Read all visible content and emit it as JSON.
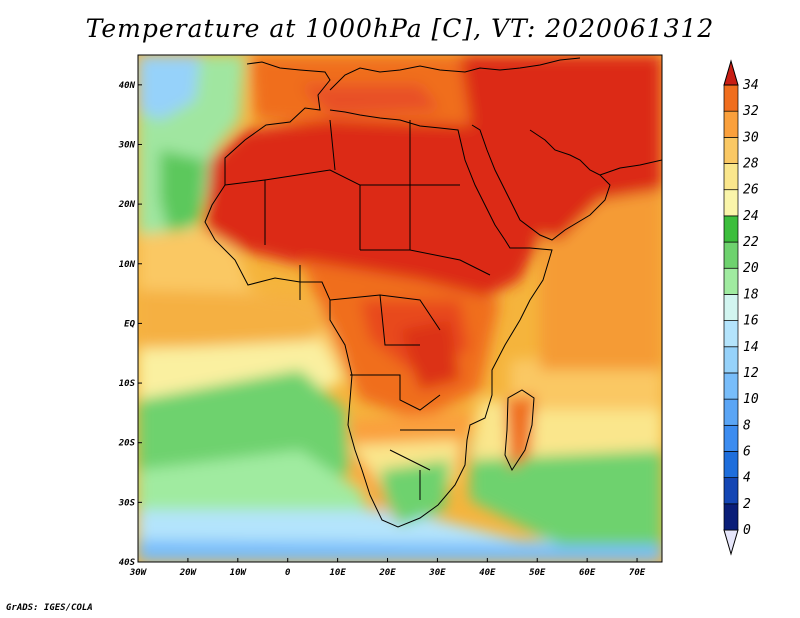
{
  "title": "Temperature at 1000hPa [C], VT: 2020061312",
  "credit": "GrADS: IGES/COLA",
  "map": {
    "lon_range": [
      -30,
      75
    ],
    "lat_range": [
      -40,
      45
    ],
    "lon_ticks": [
      "30W",
      "20W",
      "10W",
      "0",
      "10E",
      "20E",
      "30E",
      "40E",
      "50E",
      "60E",
      "70E"
    ],
    "lat_ticks": [
      "40S",
      "30S",
      "20S",
      "10S",
      "EQ",
      "10N",
      "20N",
      "30N",
      "40N"
    ]
  },
  "colorbar": {
    "levels": [
      "0",
      "2",
      "4",
      "6",
      "8",
      "10",
      "12",
      "14",
      "16",
      "18",
      "20",
      "22",
      "24",
      "26",
      "28",
      "30",
      "32",
      "34"
    ],
    "colors": [
      "#0a1e78",
      "#1446b4",
      "#1e6edc",
      "#3c8cf0",
      "#5aa5f5",
      "#78bdfa",
      "#96d2fa",
      "#b4e4fc",
      "#d2f5f0",
      "#a0eba0",
      "#6ed26e",
      "#3cbe3c",
      "#faf5aa",
      "#fae68c",
      "#fac864",
      "#faa03c",
      "#f06e1e",
      "#dc3214",
      "#c81e14"
    ]
  }
}
